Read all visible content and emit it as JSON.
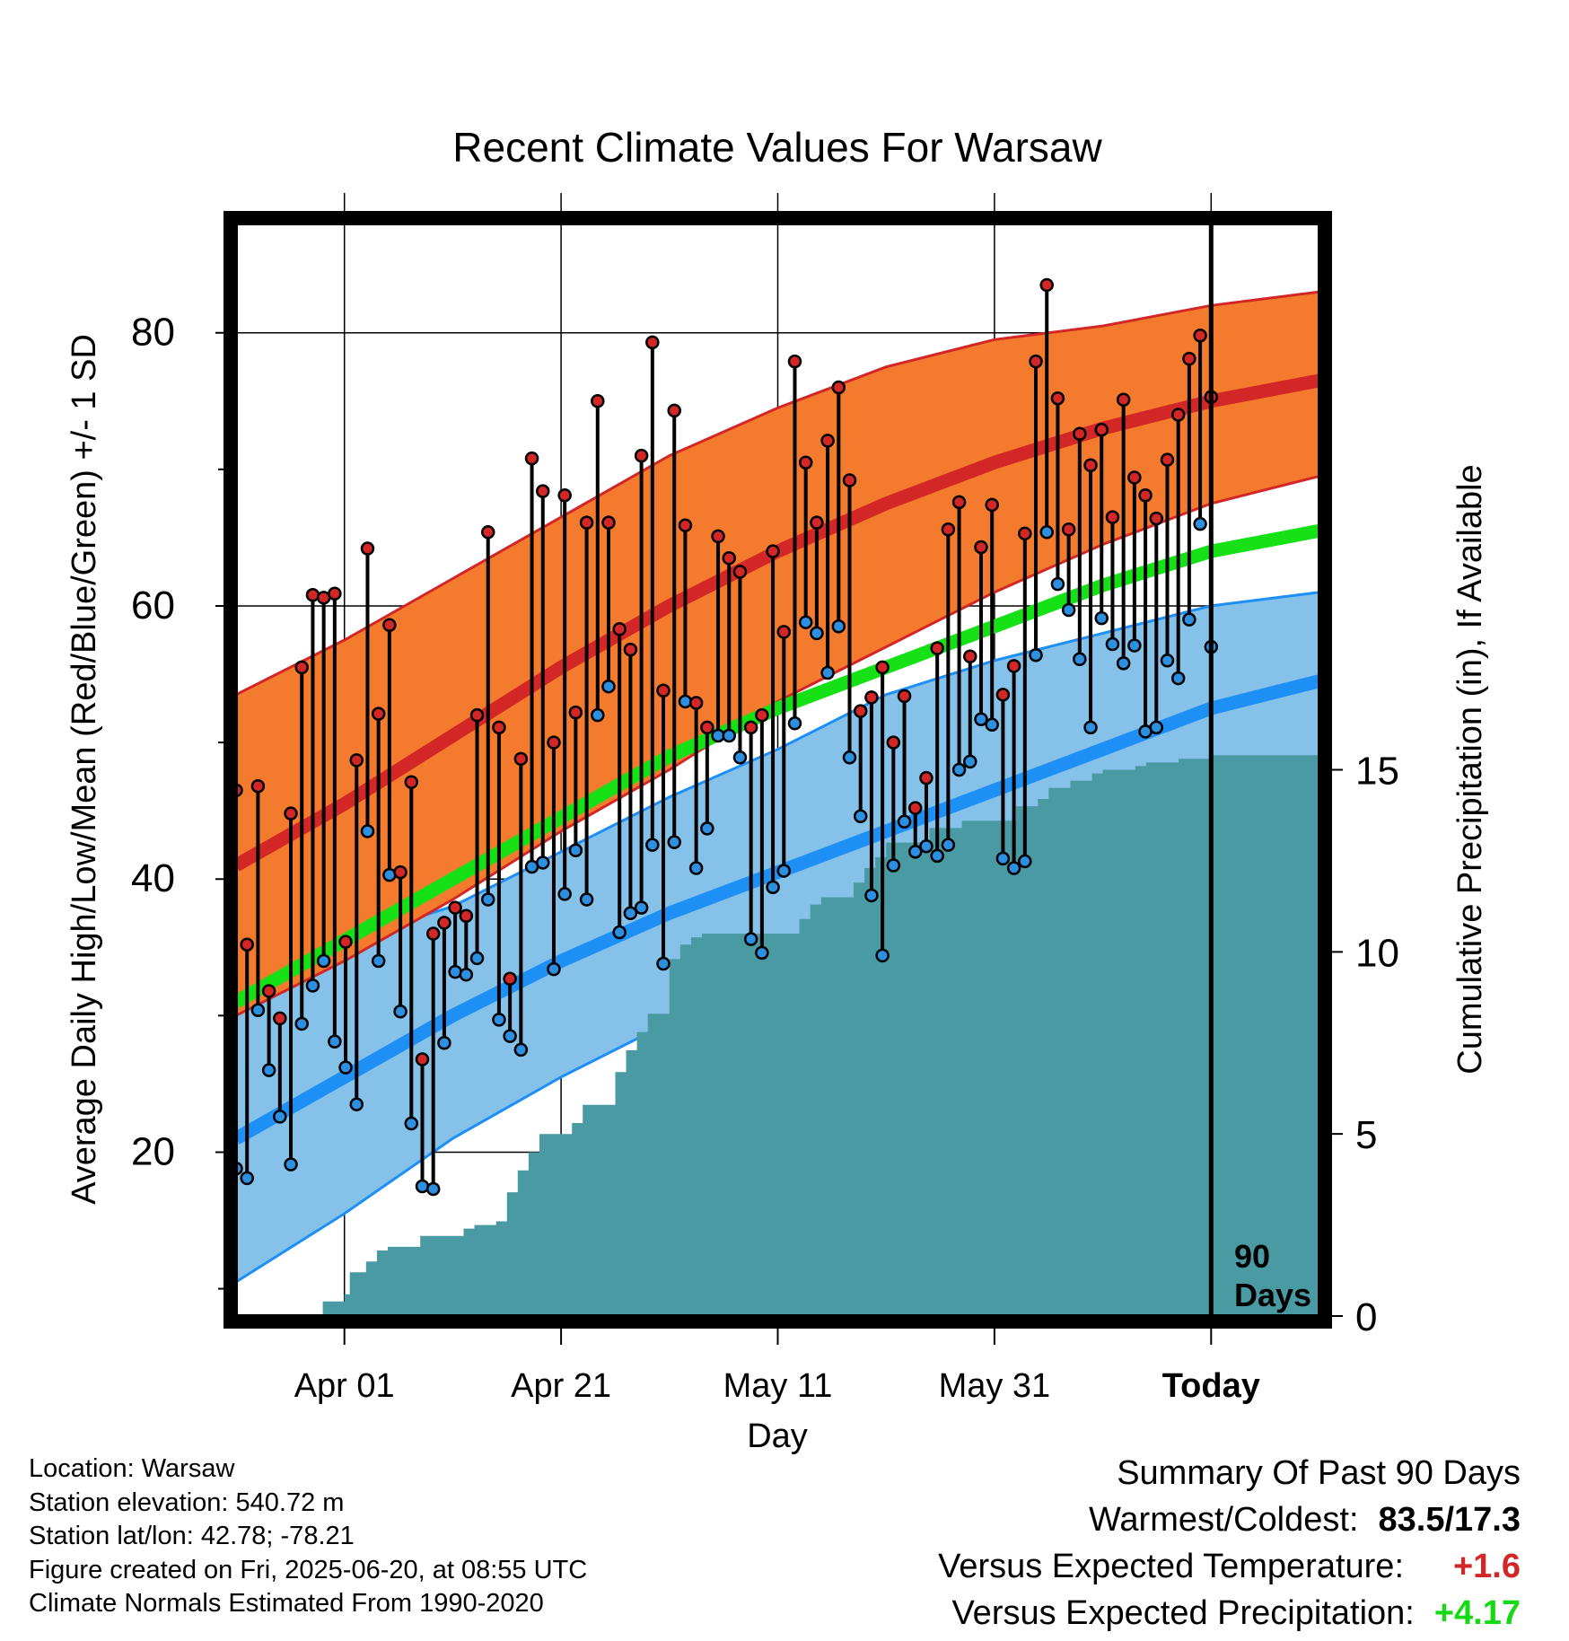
{
  "chart_data": {
    "type": "line",
    "title": "Recent Climate Values For Warsaw",
    "xlabel": "Day",
    "ylabel": "Average Daily High/Low/Mean (Red/Blue/Green) +/- 1 SD",
    "y2label": "Cumulative Precipitation (in), If Available",
    "ylim": [
      8,
      88
    ],
    "y2lim": [
      0,
      30
    ],
    "xlim": [
      0,
      100
    ],
    "x_ticks": [
      {
        "x": 10,
        "label": "Apr 01"
      },
      {
        "x": 30,
        "label": "Apr 21"
      },
      {
        "x": 50,
        "label": "May 11"
      },
      {
        "x": 70,
        "label": "May 31"
      },
      {
        "x": 90,
        "label": "Today"
      }
    ],
    "y_ticks": [
      20,
      40,
      60,
      80
    ],
    "y_minor_ticks": [
      10,
      30,
      50,
      70
    ],
    "y2_ticks": [
      0,
      5,
      10,
      15
    ],
    "grid": true,
    "today_line": {
      "x": 90,
      "label_line1": "90",
      "label_line2": "Days"
    },
    "colors": {
      "high_band": "#f47b2e",
      "high_line": "#d32626",
      "low_band": "#85c1e9",
      "low_line": "#1e8ff5",
      "mean_line": "#16e016",
      "precip_fill": "#4a9aa3",
      "high_marker": "#d32626",
      "low_marker": "#2d8fe0"
    },
    "normals": {
      "x": [
        0,
        10,
        20,
        30,
        40,
        50,
        60,
        70,
        80,
        90,
        100
      ],
      "high_mean": [
        41,
        45.5,
        50.5,
        55.5,
        60,
        64,
        67.5,
        70.5,
        73,
        75,
        76.5
      ],
      "high_upper": [
        53.5,
        57.5,
        62,
        66.5,
        71,
        74.5,
        77.5,
        79.5,
        80.5,
        82,
        83
      ],
      "high_lower": [
        30,
        34,
        38.5,
        43.5,
        48,
        53,
        57,
        61,
        64.5,
        67.5,
        69.5
      ],
      "low_mean": [
        21,
        25.5,
        30,
        34,
        37.5,
        40.5,
        43.5,
        46.5,
        49.5,
        52.5,
        54.5
      ],
      "low_upper": [
        33.5,
        35.5,
        38,
        42,
        46,
        49.5,
        53.5,
        56,
        58,
        60,
        61
      ],
      "low_lower": [
        10.5,
        15.5,
        21,
        25.5,
        29.5,
        32.5,
        36,
        39.5,
        43,
        46,
        48
      ],
      "avg_mean": [
        31,
        35.5,
        40,
        44.5,
        49,
        52.5,
        55.5,
        58.5,
        61.5,
        64,
        65.5
      ]
    },
    "series": [
      {
        "name": "Daily High",
        "values": [
          46.5,
          35.2,
          46.8,
          31.8,
          29.8,
          44.8,
          55.5,
          60.8,
          60.6,
          60.9,
          35.4,
          48.7,
          64.2,
          52.1,
          58.6,
          40.5,
          47.1,
          26.8,
          36.0,
          36.8,
          37.9,
          37.3,
          52.0,
          65.4,
          51.1,
          32.7,
          48.8,
          70.8,
          68.4,
          50.0,
          68.1,
          52.2,
          66.1,
          75.0,
          66.1,
          58.3,
          56.8,
          71.0,
          79.3,
          53.8,
          74.3,
          65.9,
          52.9,
          51.1,
          65.1,
          63.5,
          62.5,
          51.1,
          52.0,
          64.0,
          58.1,
          77.9,
          70.5,
          66.1,
          72.1,
          76.0,
          69.2,
          52.3,
          53.3,
          55.5,
          50.0,
          53.4,
          45.2,
          47.4,
          56.9,
          65.6,
          67.6,
          56.3,
          64.3,
          67.4,
          53.5,
          55.6,
          65.3,
          77.9,
          83.5,
          75.2,
          65.6,
          72.6,
          70.3,
          72.9,
          66.5,
          75.1,
          69.4,
          68.1,
          66.4,
          70.7,
          74.0,
          78.1,
          79.8,
          75.3
        ]
      },
      {
        "name": "Daily Low",
        "values": [
          18.8,
          18.1,
          30.4,
          26.0,
          22.6,
          19.1,
          29.4,
          32.2,
          34.0,
          28.1,
          26.2,
          23.5,
          43.5,
          34.0,
          40.3,
          30.3,
          22.1,
          17.5,
          17.3,
          28.0,
          33.2,
          33.0,
          34.2,
          38.5,
          29.7,
          28.5,
          27.5,
          40.9,
          41.2,
          33.4,
          38.9,
          42.1,
          38.5,
          52.0,
          54.1,
          36.1,
          37.5,
          37.9,
          42.5,
          33.8,
          42.7,
          53.0,
          40.8,
          43.7,
          50.5,
          50.5,
          48.9,
          35.6,
          34.6,
          39.4,
          40.6,
          51.4,
          58.8,
          58.0,
          55.1,
          58.5,
          48.9,
          44.6,
          38.8,
          34.4,
          41.0,
          44.2,
          42.0,
          42.4,
          41.7,
          42.5,
          48.0,
          48.6,
          51.7,
          51.3,
          41.5,
          40.8,
          41.3,
          56.4,
          65.4,
          61.6,
          59.7,
          56.1,
          51.1,
          59.1,
          57.2,
          55.8,
          57.1,
          50.8,
          51.1,
          56.0,
          54.7,
          59.0,
          66.0,
          57.0
        ]
      }
    ],
    "precip_cumulative": {
      "x": [
        0,
        6,
        8,
        10,
        10.5,
        12,
        13,
        14,
        15,
        16,
        17,
        18,
        19,
        20,
        21,
        22,
        23,
        24,
        25,
        26,
        27,
        28,
        29,
        30,
        31,
        32,
        33,
        34,
        35,
        36,
        37,
        38,
        39,
        40,
        41,
        42,
        43,
        44,
        44.5,
        46,
        47,
        48,
        49,
        50,
        51,
        52,
        53,
        54,
        55,
        56,
        57,
        58,
        59,
        60,
        61,
        62,
        63,
        64,
        65,
        66,
        67,
        68,
        69,
        70,
        71,
        72,
        73,
        74,
        75,
        76,
        77,
        78,
        79,
        80,
        81,
        82,
        83,
        84,
        85,
        86,
        87,
        88,
        89,
        90,
        91,
        100
      ],
      "y": [
        0,
        0,
        0.4,
        0.6,
        1.2,
        1.5,
        1.8,
        1.9,
        1.9,
        1.9,
        2.2,
        2.2,
        2.2,
        2.2,
        2.4,
        2.5,
        2.5,
        2.6,
        3.4,
        4.0,
        4.5,
        5.0,
        5.0,
        5.0,
        5.3,
        5.8,
        5.8,
        5.8,
        6.7,
        7.3,
        7.8,
        8.3,
        8.3,
        9.8,
        10.2,
        10.4,
        10.5,
        10.5,
        10.5,
        10.5,
        10.5,
        10.5,
        10.5,
        10.5,
        10.5,
        10.9,
        11.3,
        11.5,
        11.5,
        11.5,
        11.9,
        12.3,
        12.6,
        13.0,
        13.0,
        13.0,
        13.0,
        13.4,
        13.4,
        13.4,
        13.6,
        13.6,
        13.6,
        13.6,
        13.6,
        14.0,
        14.0,
        14.2,
        14.5,
        14.5,
        14.7,
        14.7,
        14.9,
        15.0,
        15.0,
        15.0,
        15.1,
        15.2,
        15.2,
        15.2,
        15.3,
        15.3,
        15.3,
        15.4,
        15.4,
        15.4
      ]
    }
  },
  "info": {
    "location": "Location: Warsaw",
    "elevation": "Station elevation: 540.72 m",
    "latlon": "Station lat/lon: 42.78; -78.21",
    "created": "Figure created on Fri, 2025-06-20, at 08:55 UTC",
    "normals": "Climate Normals Estimated From 1990-2020"
  },
  "summary": {
    "title": "Summary Of Past 90 Days",
    "warmest_label": "Warmest/Coldest:",
    "warmest_value": "83.5/17.3",
    "temp_label": "Versus Expected Temperature:",
    "temp_value": "+1.6",
    "temp_color": "#d32626",
    "precip_label": "Versus Expected Precipitation:",
    "precip_value": "+4.17",
    "precip_color": "#16d916"
  }
}
